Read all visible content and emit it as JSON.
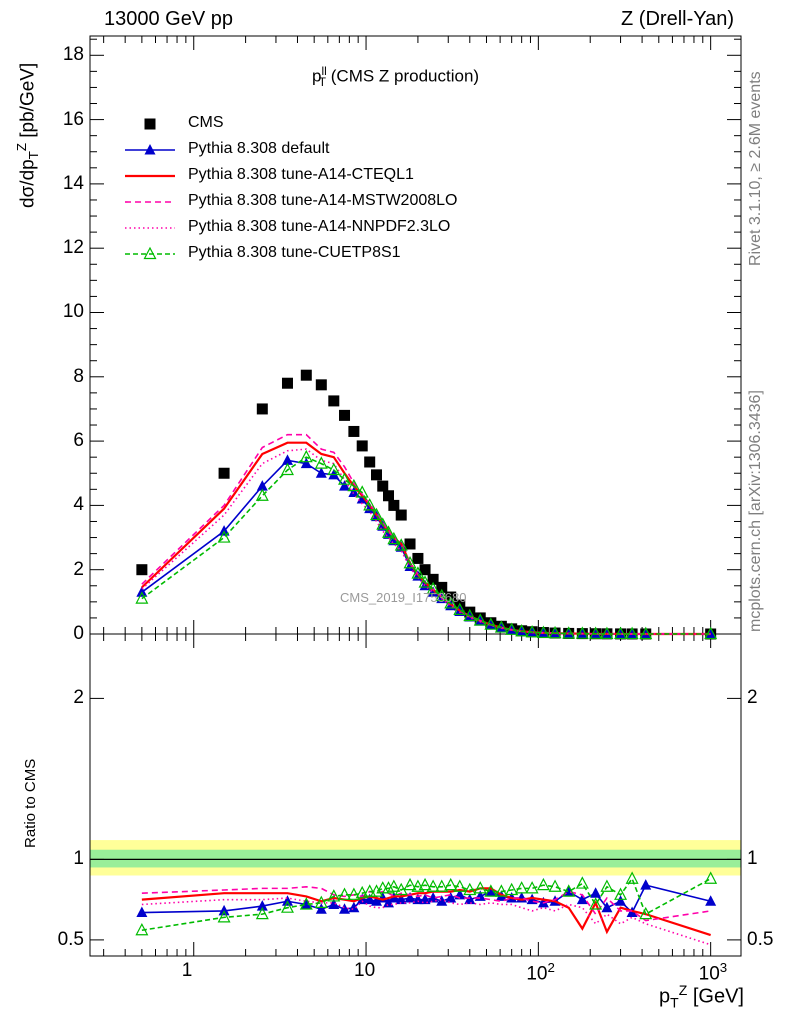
{
  "header": {
    "left": "13000 GeV pp",
    "right": "Z (Drell-Yan)"
  },
  "plot_title": {
    "main": "p",
    "sup": "ll",
    "sub": "T",
    "suffix": "(CMS Z production)"
  },
  "side_labels": {
    "rivet": "Rivet 3.1.10, ≥ 2.6M events",
    "mcplots": "mcplots.cern.ch [arXiv:1306.3436]"
  },
  "watermark": "CMS_2019_I1753680",
  "axes": {
    "y_main_label": "dσ/dp_T^Z [pb/GeV]",
    "y_ratio_label": "Ratio to CMS",
    "x_label": "p_T^Z [GeV]",
    "x_ticks": [
      "1",
      "10",
      "10^2",
      "10^3"
    ],
    "y_main_ticks": [
      "0",
      "2",
      "4",
      "6",
      "8",
      "10",
      "12",
      "14",
      "16",
      "18"
    ],
    "y_ratio_ticks": [
      "0.5",
      "1",
      "2"
    ]
  },
  "legend": [
    {
      "label": "CMS"
    },
    {
      "label": "Pythia 8.308 default"
    },
    {
      "label": "Pythia 8.308 tune-A14-CTEQL1"
    },
    {
      "label": "Pythia 8.308 tune-A14-MSTW2008LO"
    },
    {
      "label": "Pythia 8.308 tune-A14-NNPDF2.3LO"
    },
    {
      "label": "Pythia 8.308 tune-CUETP8S1"
    }
  ],
  "chart_data": {
    "type": "scatter",
    "x_scale": "log",
    "xlim": [
      0.25,
      1500
    ],
    "ylim_main": [
      0,
      18.6
    ],
    "ylim_ratio": [
      0.4,
      2.4
    ],
    "x": [
      0.5,
      1.5,
      2.5,
      3.5,
      4.5,
      5.5,
      6.5,
      7.5,
      8.5,
      9.5,
      10.5,
      11.5,
      12.5,
      13.5,
      14.5,
      16,
      18,
      20,
      22,
      24.5,
      27.5,
      31,
      35,
      40,
      46,
      53,
      61,
      70,
      80,
      92,
      107,
      125,
      150,
      180,
      215,
      250,
      300,
      350,
      420,
      1000
    ],
    "series": [
      {
        "name": "CMS",
        "color": "#000000",
        "marker": "square",
        "values": [
          2.0,
          5.0,
          7.0,
          7.8,
          8.05,
          7.75,
          7.25,
          6.8,
          6.3,
          5.85,
          5.35,
          4.95,
          4.6,
          4.3,
          4.0,
          3.7,
          2.8,
          2.35,
          2.0,
          1.7,
          1.45,
          1.15,
          0.9,
          0.68,
          0.5,
          0.35,
          0.24,
          0.16,
          0.1,
          0.07,
          0.045,
          0.03,
          0.018,
          0.012,
          0.008,
          0.005,
          0.003,
          0.002,
          0.001,
          0.0001
        ],
        "ratio": [
          1,
          1,
          1,
          1,
          1,
          1,
          1,
          1,
          1,
          1,
          1,
          1,
          1,
          1,
          1,
          1,
          1,
          1,
          1,
          1,
          1,
          1,
          1,
          1,
          1,
          1,
          1,
          1,
          1,
          1,
          1,
          1,
          1,
          1,
          1,
          1,
          1,
          1,
          1,
          1
        ]
      },
      {
        "name": "Pythia 8.308 default",
        "color": "#0000cc",
        "marker": "triangle",
        "dash": "",
        "values": [
          1.3,
          3.2,
          4.6,
          5.4,
          5.3,
          5.0,
          4.95,
          4.6,
          4.4,
          4.2,
          3.9,
          3.65,
          3.35,
          3.1,
          2.9,
          2.7,
          2.1,
          1.8,
          1.5,
          1.3,
          1.1,
          0.88,
          0.7,
          0.53,
          0.4,
          0.28,
          0.19,
          0.12,
          0.08,
          0.05,
          0.034,
          0.024,
          0.014,
          0.009,
          0.006,
          0.004,
          0.0024,
          0.0017,
          0.0008,
          8e-05
        ],
        "ratio": [
          0.67,
          0.68,
          0.71,
          0.74,
          0.72,
          0.69,
          0.72,
          0.69,
          0.7,
          0.75,
          0.75,
          0.74,
          0.76,
          0.73,
          0.76,
          0.75,
          0.76,
          0.75,
          0.75,
          0.76,
          0.74,
          0.76,
          0.78,
          0.75,
          0.77,
          0.8,
          0.77,
          0.76,
          0.76,
          0.75,
          0.73,
          0.74,
          0.8,
          0.75,
          0.79,
          0.7,
          0.74,
          0.67,
          0.84,
          0.74
        ]
      },
      {
        "name": "Pythia 8.308 tune-A14-CTEQL1",
        "color": "#ff0000",
        "dash": "",
        "values": [
          1.45,
          3.9,
          5.6,
          5.95,
          5.95,
          5.6,
          5.5,
          5.0,
          4.6,
          4.3,
          4.0,
          3.7,
          3.4,
          3.2,
          3.0,
          2.8,
          2.2,
          1.85,
          1.6,
          1.38,
          1.15,
          0.92,
          0.73,
          0.55,
          0.41,
          0.29,
          0.2,
          0.13,
          0.085,
          0.055,
          0.036,
          0.025,
          0.015,
          0.01,
          0.0066,
          0.0042,
          0.0026,
          0.0018,
          0.0009,
          9e-05
        ],
        "ratio": [
          0.75,
          0.79,
          0.79,
          0.79,
          0.77,
          0.74,
          0.76,
          0.75,
          0.74,
          0.76,
          0.77,
          0.76,
          0.75,
          0.76,
          0.77,
          0.77,
          0.78,
          0.79,
          0.79,
          0.8,
          0.8,
          0.8,
          0.81,
          0.8,
          0.82,
          0.82,
          0.78,
          0.76,
          0.75,
          0.76,
          0.75,
          0.74,
          0.7,
          0.57,
          0.73,
          0.55,
          0.7,
          0.68,
          0.66,
          0.53
        ]
      },
      {
        "name": "Pythia 8.308 tune-A14-MSTW2008LO",
        "color": "#ff00aa",
        "dash": "6,4",
        "values": [
          1.55,
          4.0,
          5.8,
          6.2,
          6.2,
          5.75,
          5.65,
          5.2,
          4.7,
          4.35,
          4.05,
          3.75,
          3.45,
          3.2,
          3.0,
          2.8,
          2.2,
          1.86,
          1.6,
          1.4,
          1.16,
          0.93,
          0.73,
          0.55,
          0.41,
          0.29,
          0.2,
          0.13,
          0.085,
          0.055,
          0.036,
          0.025,
          0.015,
          0.009,
          0.006,
          0.004,
          0.0025,
          0.0015,
          0.0008,
          8e-05
        ],
        "ratio": [
          0.79,
          0.81,
          0.82,
          0.82,
          0.83,
          0.82,
          0.78,
          0.77,
          0.78,
          0.77,
          0.8,
          0.79,
          0.8,
          0.79,
          0.77,
          0.79,
          0.78,
          0.77,
          0.78,
          0.76,
          0.77,
          0.78,
          0.76,
          0.76,
          0.76,
          0.75,
          0.74,
          0.76,
          0.76,
          0.74,
          0.73,
          0.75,
          0.8,
          0.78,
          0.66,
          0.76,
          0.68,
          0.68,
          0.62,
          0.68
        ]
      },
      {
        "name": "Pythia 8.308 tune-A14-NNPDF2.3LO",
        "color": "#ff00aa",
        "dash": "1.5,3",
        "values": [
          1.4,
          3.7,
          5.3,
          5.7,
          5.75,
          5.4,
          5.3,
          4.8,
          4.35,
          4.05,
          3.8,
          3.5,
          3.2,
          3.0,
          2.8,
          2.6,
          2.05,
          1.75,
          1.5,
          1.3,
          1.1,
          0.86,
          0.68,
          0.51,
          0.38,
          0.27,
          0.18,
          0.12,
          0.075,
          0.05,
          0.032,
          0.022,
          0.013,
          0.008,
          0.005,
          0.0034,
          0.002,
          0.0014,
          0.0006,
          6e-05
        ],
        "ratio": [
          0.72,
          0.75,
          0.75,
          0.76,
          0.74,
          0.73,
          0.73,
          0.7,
          0.69,
          0.74,
          0.71,
          0.7,
          0.7,
          0.72,
          0.72,
          0.73,
          0.73,
          0.74,
          0.73,
          0.74,
          0.75,
          0.73,
          0.72,
          0.73,
          0.72,
          0.73,
          0.72,
          0.72,
          0.7,
          0.68,
          0.7,
          0.68,
          0.72,
          0.7,
          0.6,
          0.66,
          0.6,
          0.64,
          0.6,
          0.47
        ]
      },
      {
        "name": "Pythia 8.308 tune-CUETP8S1",
        "color": "#00bb00",
        "marker": "open-triangle",
        "dash": "5,3",
        "values": [
          1.1,
          3.0,
          4.3,
          5.1,
          5.5,
          5.3,
          5.1,
          4.8,
          4.6,
          4.4,
          4.0,
          3.7,
          3.4,
          3.15,
          2.95,
          2.75,
          2.2,
          1.88,
          1.6,
          1.4,
          1.18,
          0.95,
          0.75,
          0.56,
          0.42,
          0.29,
          0.2,
          0.13,
          0.085,
          0.055,
          0.036,
          0.025,
          0.015,
          0.0095,
          0.006,
          0.004,
          0.0026,
          0.0017,
          0.0009,
          9e-05
        ],
        "ratio": [
          0.56,
          0.64,
          0.66,
          0.7,
          0.72,
          0.73,
          0.77,
          0.78,
          0.78,
          0.79,
          0.8,
          0.8,
          0.82,
          0.82,
          0.83,
          0.81,
          0.84,
          0.83,
          0.84,
          0.83,
          0.83,
          0.84,
          0.83,
          0.81,
          0.82,
          0.8,
          0.8,
          0.81,
          0.82,
          0.82,
          0.84,
          0.83,
          0.8,
          0.85,
          0.72,
          0.83,
          0.78,
          0.88,
          0.66,
          0.88
        ]
      }
    ]
  }
}
